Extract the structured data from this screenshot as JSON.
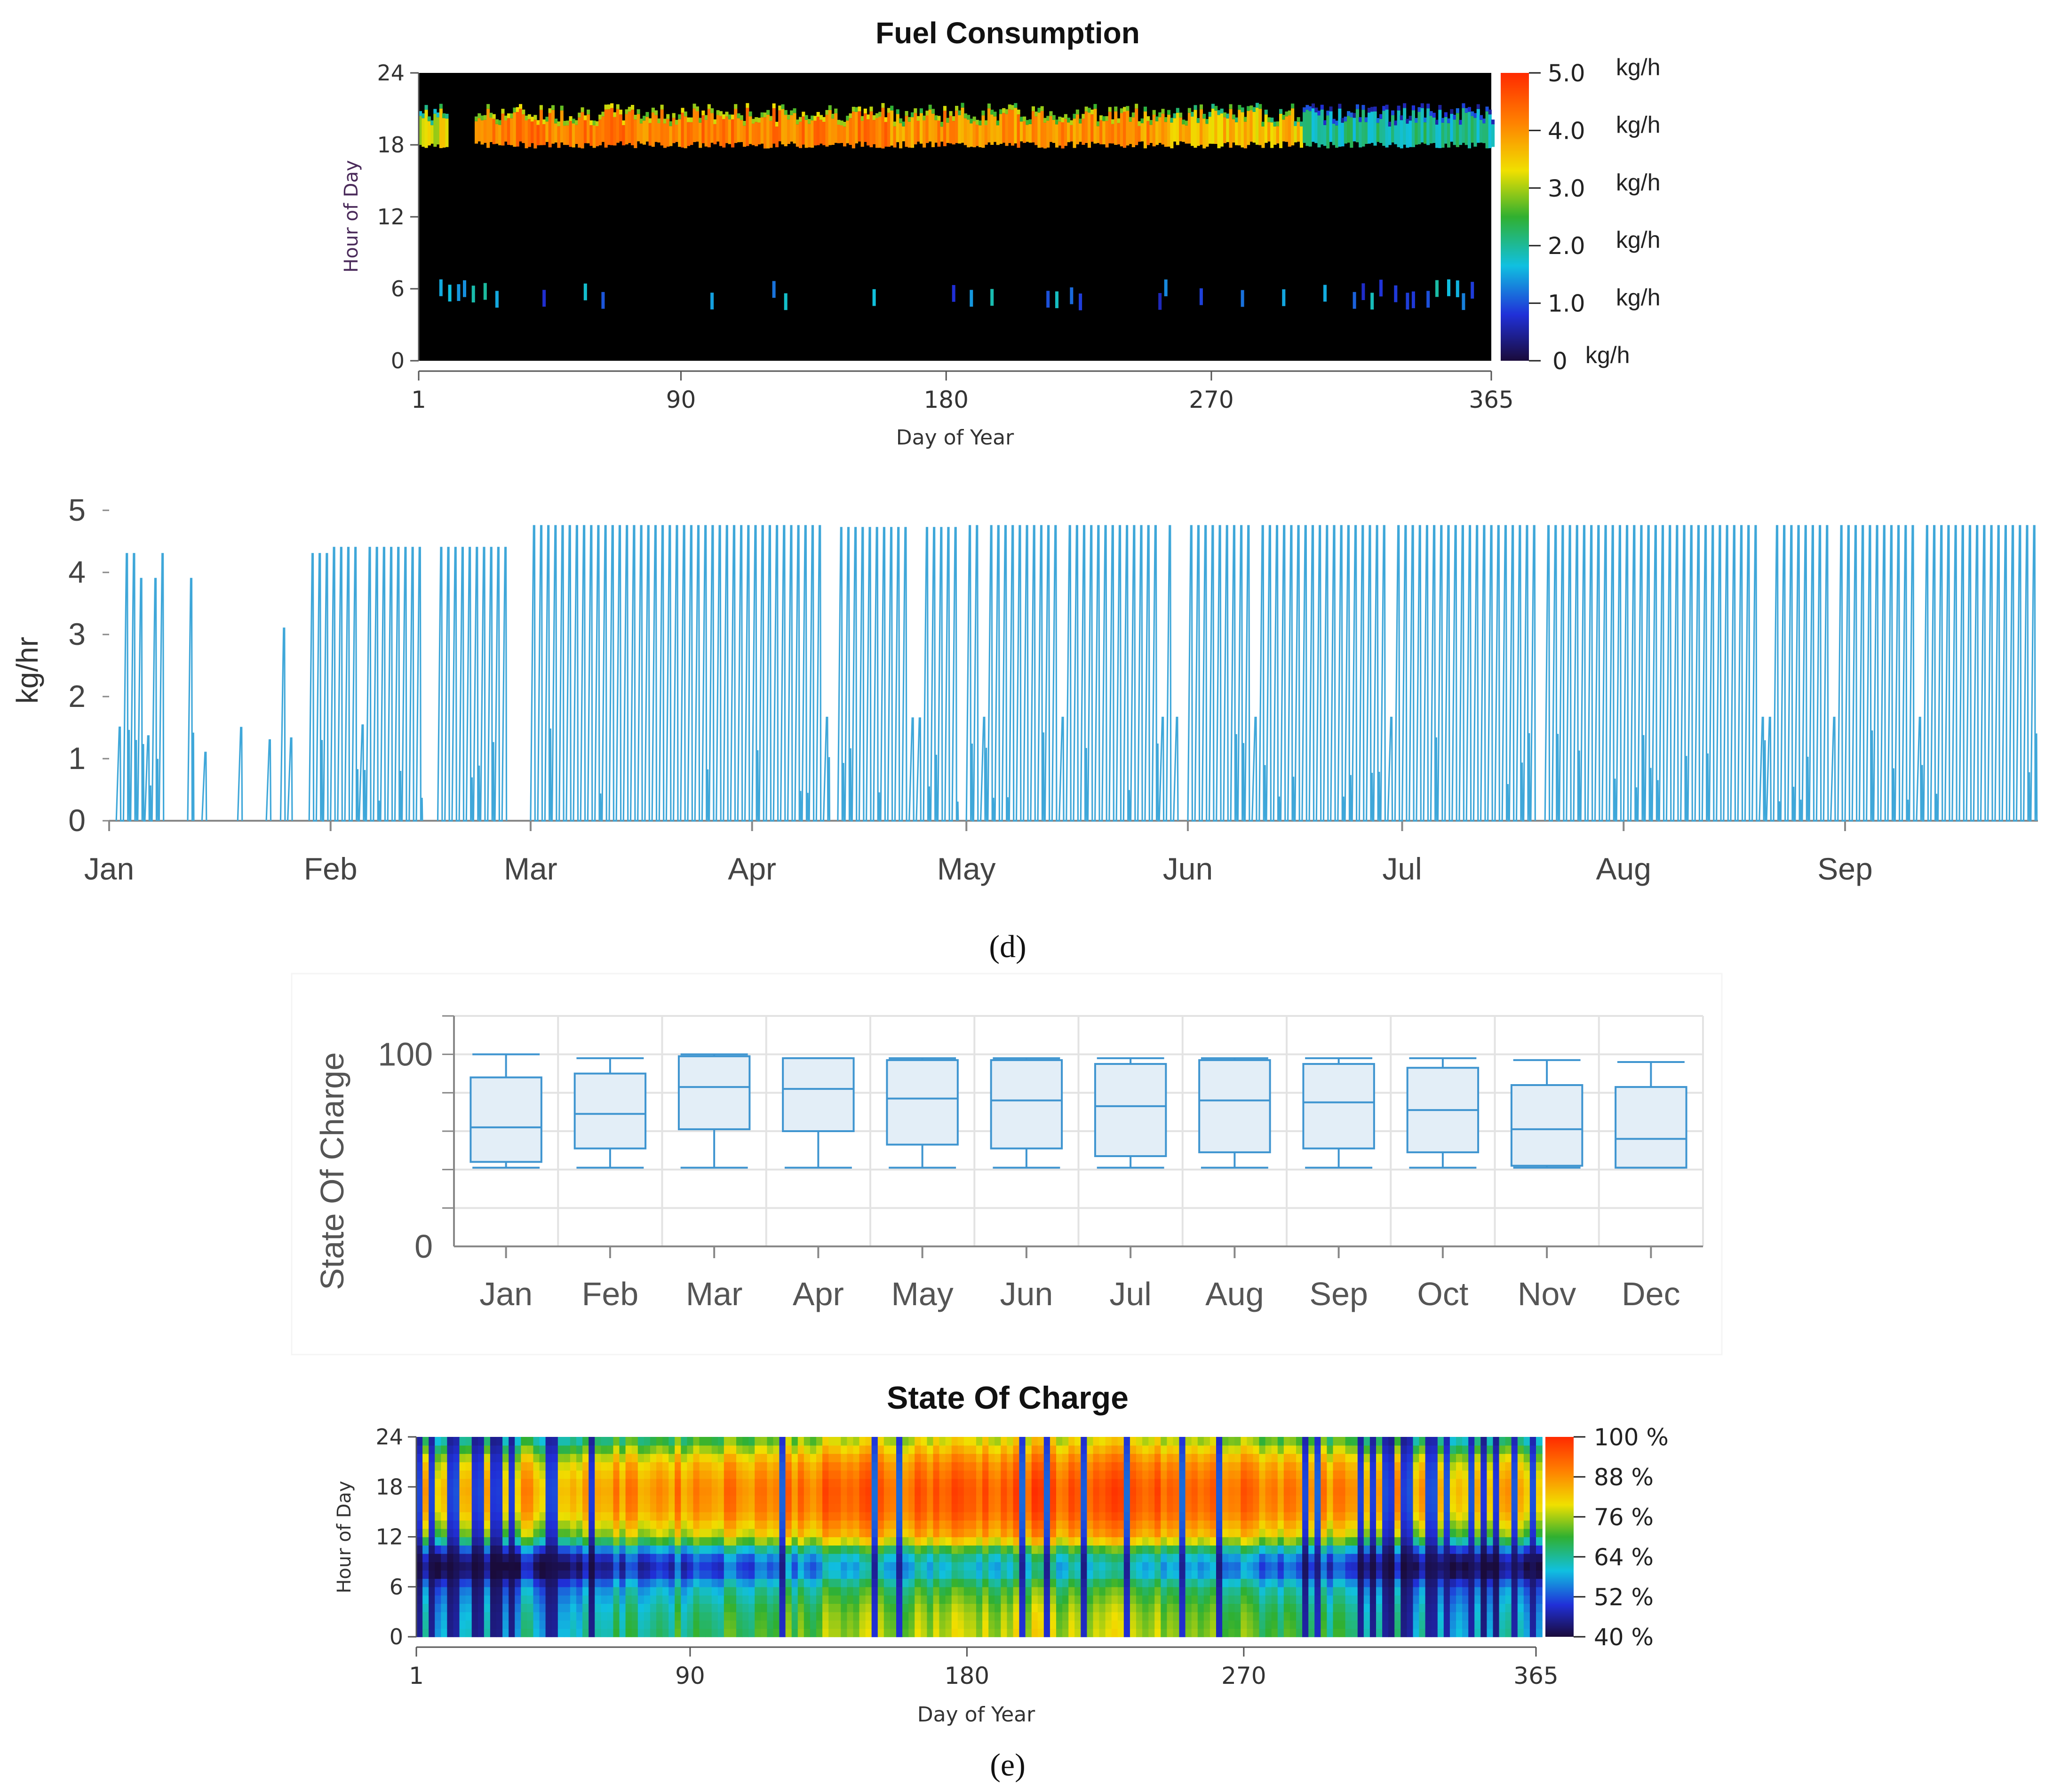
{
  "colors": {
    "heatmap_background": "#000000",
    "fuel_line": "#3fa7d9",
    "box_stroke": "#3f95d0",
    "box_fill": "#e3eef7",
    "gridline": "#e3e3e3",
    "axis": "#888888"
  },
  "panel_labels": {
    "d": "(d)",
    "e": "(e)"
  },
  "chart_data": [
    {
      "type": "heatmap",
      "title": "Fuel Consumption",
      "xlabel": "Day of Year",
      "ylabel": "Hour of Day",
      "x_ticks": [
        "1",
        "90",
        "180",
        "270",
        "365"
      ],
      "y_ticks": [
        "0",
        "6",
        "12",
        "18",
        "24"
      ],
      "xlim": [
        1,
        365
      ],
      "ylim": [
        0,
        24
      ],
      "colorbar": {
        "labels": [
          "5.0",
          "4.0",
          "3.0",
          "2.0",
          "1.0",
          "0"
        ],
        "unit": "kg/h",
        "range": [
          0,
          5
        ],
        "colormap": [
          "#1a0b3b",
          "#2030d8",
          "#10c0e0",
          "#30b030",
          "#f0e000",
          "#ff8000",
          "#ff2a00"
        ]
      },
      "evening_band": {
        "hours": [
          18,
          20
        ],
        "typical_kg_h_by_season": [
          {
            "days": [
              1,
              10
            ],
            "value": 3.2
          },
          {
            "days": [
              20,
              160
            ],
            "value": 4.2
          },
          {
            "days": [
              160,
              255
            ],
            "value": 4.0
          },
          {
            "days": [
              255,
              300
            ],
            "value": 3.6
          },
          {
            "days": [
              300,
              365
            ],
            "value": 2.0
          }
        ]
      },
      "morning_events_hour": 5.5,
      "morning_events_days": [
        8,
        11,
        14,
        16,
        19,
        23,
        27,
        43,
        57,
        63,
        100,
        121,
        125,
        155,
        182,
        188,
        195,
        214,
        217,
        222,
        225,
        252,
        254,
        266,
        280,
        294,
        308,
        318,
        321,
        324,
        327,
        332,
        336,
        338,
        343,
        346,
        350,
        353,
        355,
        358
      ]
    },
    {
      "type": "line",
      "xlabel": "",
      "ylabel": "kg/hr",
      "x_tick_labels": [
        "Jan",
        "Feb",
        "Mar",
        "Apr",
        "May",
        "Jun",
        "Jul",
        "Aug",
        "Sep"
      ],
      "x_tick_days": [
        0,
        31,
        59,
        90,
        120,
        151,
        181,
        212,
        243
      ],
      "y_ticks": [
        "0",
        "1",
        "2",
        "3",
        "4",
        "5"
      ],
      "ylim": [
        0,
        5
      ],
      "xlim_days": [
        0,
        270
      ],
      "daily_peak_kg_hr_segments": [
        {
          "days": [
            1,
            4
          ],
          "value": 4.3
        },
        {
          "days": [
            4,
            7
          ],
          "value": 3.9
        },
        {
          "days": [
            7,
            8
          ],
          "value": 4.3
        },
        {
          "days": [
            11,
            12
          ],
          "value": 3.9
        },
        {
          "days": [
            13,
            14
          ],
          "value": 1.1
        },
        {
          "days": [
            18,
            19
          ],
          "value": 1.5
        },
        {
          "days": [
            22,
            23
          ],
          "value": 1.3
        },
        {
          "days": [
            24,
            25
          ],
          "value": 3.1
        },
        {
          "days": [
            25,
            26
          ],
          "value": 3.8
        },
        {
          "days": [
            28,
            31
          ],
          "value": 4.3
        },
        {
          "days": [
            31,
            44
          ],
          "value": 4.4
        },
        {
          "days": [
            46,
            56
          ],
          "value": 4.4
        },
        {
          "days": [
            59,
            101
          ],
          "value": 4.75
        },
        {
          "days": [
            102,
            119
          ],
          "value": 4.72
        },
        {
          "days": [
            120,
            150
          ],
          "value": 4.75
        },
        {
          "days": [
            151,
            200
          ],
          "value": 4.75
        },
        {
          "days": [
            201,
            270
          ],
          "value": 4.75
        }
      ]
    },
    {
      "type": "box",
      "title": "",
      "ylabel": "State Of Charge",
      "categories": [
        "Jan",
        "Feb",
        "Mar",
        "Apr",
        "May",
        "Jun",
        "Jul",
        "Aug",
        "Sep",
        "Oct",
        "Nov",
        "Dec"
      ],
      "y_ticks": [
        "0",
        "100"
      ],
      "ylim": [
        0,
        120
      ],
      "boxes": [
        {
          "min": 41,
          "q1": 44,
          "median": 62,
          "q3": 88,
          "max": 100
        },
        {
          "min": 41,
          "q1": 51,
          "median": 69,
          "q3": 90,
          "max": 98
        },
        {
          "min": 41,
          "q1": 61,
          "median": 83,
          "q3": 99,
          "max": 100
        },
        {
          "min": 41,
          "q1": 60,
          "median": 82,
          "q3": 98,
          "max": 98
        },
        {
          "min": 41,
          "q1": 53,
          "median": 77,
          "q3": 97,
          "max": 98
        },
        {
          "min": 41,
          "q1": 51,
          "median": 76,
          "q3": 97,
          "max": 98
        },
        {
          "min": 41,
          "q1": 47,
          "median": 73,
          "q3": 95,
          "max": 98
        },
        {
          "min": 41,
          "q1": 49,
          "median": 76,
          "q3": 97,
          "max": 98
        },
        {
          "min": 41,
          "q1": 51,
          "median": 75,
          "q3": 95,
          "max": 98
        },
        {
          "min": 41,
          "q1": 49,
          "median": 71,
          "q3": 93,
          "max": 98
        },
        {
          "min": 41,
          "q1": 42,
          "median": 61,
          "q3": 84,
          "max": 97
        },
        {
          "min": 41,
          "q1": 41,
          "median": 56,
          "q3": 83,
          "max": 96
        }
      ]
    },
    {
      "type": "heatmap",
      "title": "State Of Charge",
      "xlabel": "Day of Year",
      "ylabel": "Hour of Day",
      "x_ticks": [
        "1",
        "90",
        "180",
        "270",
        "365"
      ],
      "y_ticks": [
        "0",
        "6",
        "12",
        "18",
        "24"
      ],
      "xlim": [
        1,
        365
      ],
      "ylim": [
        0,
        24
      ],
      "colorbar": {
        "labels": [
          "100 %",
          "88 %",
          "76 %",
          "64 %",
          "52 %",
          "40 %"
        ],
        "range": [
          40,
          100
        ],
        "colormap": [
          "#1a0b3b",
          "#2030d8",
          "#10c0e0",
          "#30b030",
          "#f0e000",
          "#ff8000",
          "#ff2a00"
        ]
      },
      "soc_percent_by_hour_and_season": {
        "hours": [
          0,
          3,
          6,
          8,
          10,
          12,
          15,
          18,
          21,
          24
        ],
        "winter": [
          62,
          60,
          55,
          42,
          48,
          72,
          84,
          86,
          80,
          62
        ],
        "summer": [
          78,
          76,
          70,
          60,
          66,
          86,
          94,
          95,
          90,
          78
        ]
      },
      "low_soc_days": [
        6,
        12,
        32,
        43,
        45,
        58,
        120,
        150,
        158,
        197,
        206,
        218,
        232,
        250,
        262,
        290,
        308,
        322,
        336,
        348,
        358
      ]
    }
  ]
}
